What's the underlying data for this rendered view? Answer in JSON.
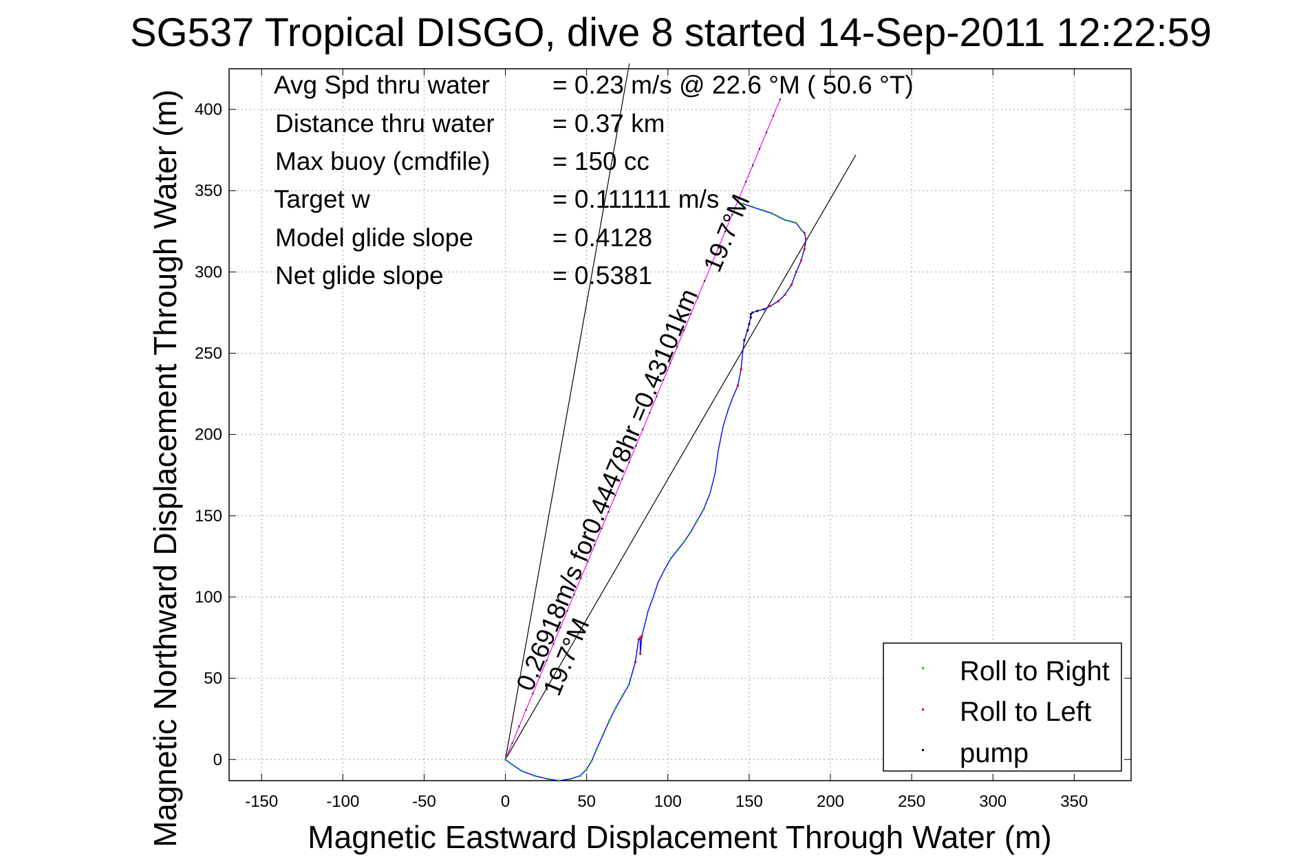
{
  "title": "SG537 Tropical DISGO, dive 8 started 14-Sep-2011 12:22:59",
  "info_lines": [
    {
      "label": "Avg Spd thru water",
      "value": "=  0.23 m/s @  22.6 °M ( 50.6 °T)"
    },
    {
      "label": "Distance thru water",
      "value": "=  0.37 km"
    },
    {
      "label": "Max buoy (cmdfile)",
      "value": "= 150 cc"
    },
    {
      "label": "Target w",
      "value": "= 0.111111 m/s"
    },
    {
      "label": "Model glide slope",
      "value": "= 0.4128"
    },
    {
      "label": "Net glide slope",
      "value": "= 0.5381"
    }
  ],
  "annotations": {
    "current_label": "0.26918m/s for0.44478hr =0.43101km",
    "angle_label_low": "19.7°M",
    "angle_label_high": "19.7°M"
  },
  "legend": {
    "items": [
      {
        "label": "Roll to Right",
        "color": "#00cc00"
      },
      {
        "label": "Roll to Left",
        "color": "#dd0000"
      },
      {
        "label": "pump",
        "color": "#000044"
      }
    ]
  },
  "colors": {
    "track": "#0000ff",
    "vector": "#ff00ff",
    "guide": "#000000",
    "grid": "#9a9a9a"
  },
  "chart_data": {
    "type": "line",
    "xlabel": "Magnetic Eastward Displacement Through Water (m)",
    "ylabel": "Magnetic Northward Displacement Through Water (m)",
    "xlim": [
      -170,
      385
    ],
    "ylim": [
      -13,
      425
    ],
    "xticks": [
      -150,
      -100,
      -50,
      0,
      50,
      100,
      150,
      200,
      250,
      300,
      350
    ],
    "yticks": [
      0,
      50,
      100,
      150,
      200,
      250,
      300,
      350,
      400
    ],
    "grid": true,
    "legend_position": "bottom-right",
    "track": {
      "x": [
        0,
        4,
        10,
        18,
        26,
        33,
        40,
        46,
        50,
        53,
        56,
        60,
        64,
        68,
        72,
        76,
        80,
        82,
        83,
        83,
        84,
        86,
        88,
        91,
        94,
        98,
        102,
        106,
        110,
        114,
        118,
        122,
        126,
        129,
        131,
        134,
        137,
        140,
        143,
        145,
        146,
        147,
        149,
        150,
        151,
        151,
        152,
        155,
        159,
        163,
        168,
        172,
        176,
        179,
        182,
        184,
        185,
        184,
        182,
        179,
        176,
        172,
        168,
        164,
        158,
        152,
        146
      ],
      "y": [
        0,
        -3,
        -7,
        -10,
        -12,
        -13,
        -12,
        -10,
        -6,
        -1,
        6,
        15,
        24,
        32,
        39,
        46,
        60,
        74,
        75,
        65,
        76,
        84,
        92,
        100,
        109,
        117,
        124,
        129,
        134,
        140,
        147,
        154,
        164,
        176,
        190,
        205,
        215,
        223,
        230,
        240,
        250,
        258,
        264,
        268,
        272,
        274,
        275,
        276,
        277,
        279,
        282,
        286,
        292,
        300,
        307,
        314,
        320,
        324,
        326,
        330,
        331,
        332,
        334,
        336,
        338,
        340,
        342
      ]
    },
    "current_vector": {
      "heading_deg": 22.6,
      "length_m": 440
    },
    "guide_lines": [
      {
        "heading_deg": 10.1,
        "length_m": 435
      },
      {
        "heading_deg": 30.1,
        "length_m": 430
      }
    ]
  }
}
